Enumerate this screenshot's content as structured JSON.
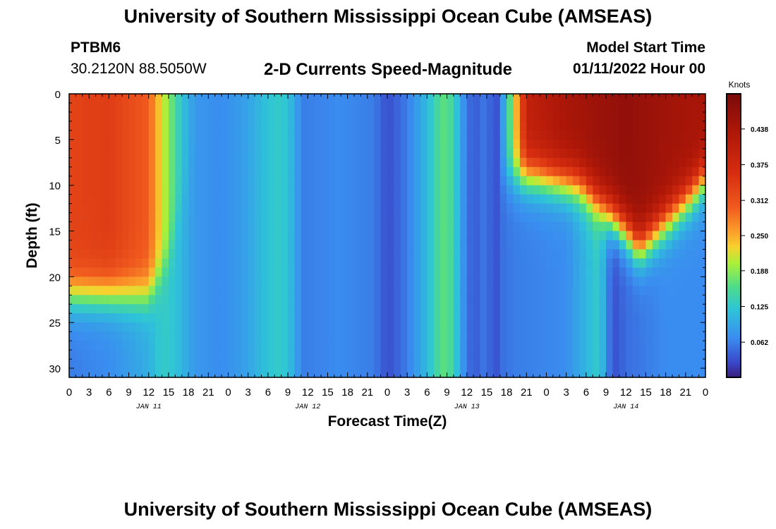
{
  "title": "University of Southern Mississippi Ocean Cube (AMSEAS)",
  "station": {
    "id": "PTBM6",
    "coords": "30.2120N  88.5050W"
  },
  "subtitle": "2-D Currents Speed-Magnitude",
  "model_start": {
    "label": "Model Start Time",
    "value": "01/11/2022 Hour 00"
  },
  "bottom_title": "University of Southern Mississippi Ocean Cube (AMSEAS)",
  "chart_data": {
    "type": "heatmap",
    "xlabel": "Forecast Time(Z)",
    "ylabel": "Depth (ft)",
    "x_range_hours": [
      0,
      96
    ],
    "y_range_ft": [
      0,
      31
    ],
    "x_tick_labels": [
      "0",
      "3",
      "6",
      "9",
      "12",
      "15",
      "18",
      "21",
      "0",
      "3",
      "6",
      "9",
      "12",
      "15",
      "18",
      "21",
      "0",
      "3",
      "6",
      "9",
      "12",
      "15",
      "18",
      "21",
      "0",
      "3",
      "6",
      "9",
      "12",
      "15",
      "18",
      "21",
      "0"
    ],
    "date_labels": [
      {
        "label": "JAN 11",
        "hour": 12
      },
      {
        "label": "JAN 12",
        "hour": 36
      },
      {
        "label": "JAN 13",
        "hour": 60
      },
      {
        "label": "JAN 14",
        "hour": 84
      }
    ],
    "y_ticks": [
      0,
      5,
      10,
      15,
      20,
      25,
      30
    ],
    "colorbar": {
      "unit": "Knots",
      "range": [
        0,
        0.5
      ],
      "ticks": [
        "0.062",
        "0.125",
        "0.188",
        "0.250",
        "0.312",
        "0.375",
        "0.438"
      ],
      "tick_values": [
        0.062,
        0.125,
        0.188,
        0.25,
        0.312,
        0.375,
        0.438
      ]
    },
    "speed_profile_knots": {
      "surface_by_hour": [
        [
          0,
          0.33
        ],
        [
          6,
          0.34
        ],
        [
          12,
          0.3
        ],
        [
          14,
          0.22
        ],
        [
          17,
          0.12
        ],
        [
          19,
          0.08
        ],
        [
          23,
          0.07
        ],
        [
          27,
          0.09
        ],
        [
          30,
          0.12
        ],
        [
          32,
          0.13
        ],
        [
          34,
          0.1
        ],
        [
          35,
          0.06
        ],
        [
          41,
          0.07
        ],
        [
          46,
          0.06
        ],
        [
          48,
          0.03
        ],
        [
          51,
          0.06
        ],
        [
          54,
          0.11
        ],
        [
          56,
          0.16
        ],
        [
          57,
          0.17
        ],
        [
          59,
          0.1
        ],
        [
          60,
          0.05
        ],
        [
          62,
          0.04
        ],
        [
          63,
          0.07
        ],
        [
          64,
          0.02
        ],
        [
          65,
          0.05
        ],
        [
          67,
          0.2
        ],
        [
          69,
          0.4
        ],
        [
          75,
          0.44
        ],
        [
          84,
          0.47
        ],
        [
          90,
          0.45
        ],
        [
          96,
          0.44
        ]
      ],
      "bottom_by_hour": [
        [
          0,
          0.06
        ],
        [
          6,
          0.07
        ],
        [
          12,
          0.1
        ],
        [
          14,
          0.13
        ],
        [
          16,
          0.12
        ],
        [
          19,
          0.08
        ],
        [
          23,
          0.07
        ],
        [
          27,
          0.09
        ],
        [
          30,
          0.12
        ],
        [
          32,
          0.13
        ],
        [
          34,
          0.1
        ],
        [
          35,
          0.06
        ],
        [
          41,
          0.07
        ],
        [
          46,
          0.06
        ],
        [
          48,
          0.03
        ],
        [
          51,
          0.06
        ],
        [
          54,
          0.11
        ],
        [
          56,
          0.16
        ],
        [
          57,
          0.17
        ],
        [
          59,
          0.1
        ],
        [
          60,
          0.05
        ],
        [
          62,
          0.04
        ],
        [
          63,
          0.07
        ],
        [
          64,
          0.02
        ],
        [
          65,
          0.05
        ],
        [
          67,
          0.06
        ],
        [
          75,
          0.07
        ],
        [
          79,
          0.12
        ],
        [
          80,
          0.13
        ],
        [
          82,
          0.03
        ],
        [
          84,
          0.05
        ],
        [
          90,
          0.07
        ],
        [
          96,
          0.07
        ]
      ],
      "mixed_layer_depth_ft": [
        [
          0,
          22
        ],
        [
          12,
          22
        ],
        [
          15,
          18
        ],
        [
          18,
          9
        ],
        [
          70,
          9
        ],
        [
          77,
          10
        ],
        [
          80,
          12
        ],
        [
          84,
          15
        ],
        [
          86,
          17
        ],
        [
          90,
          14
        ],
        [
          94,
          11
        ],
        [
          96,
          9
        ]
      ]
    }
  }
}
